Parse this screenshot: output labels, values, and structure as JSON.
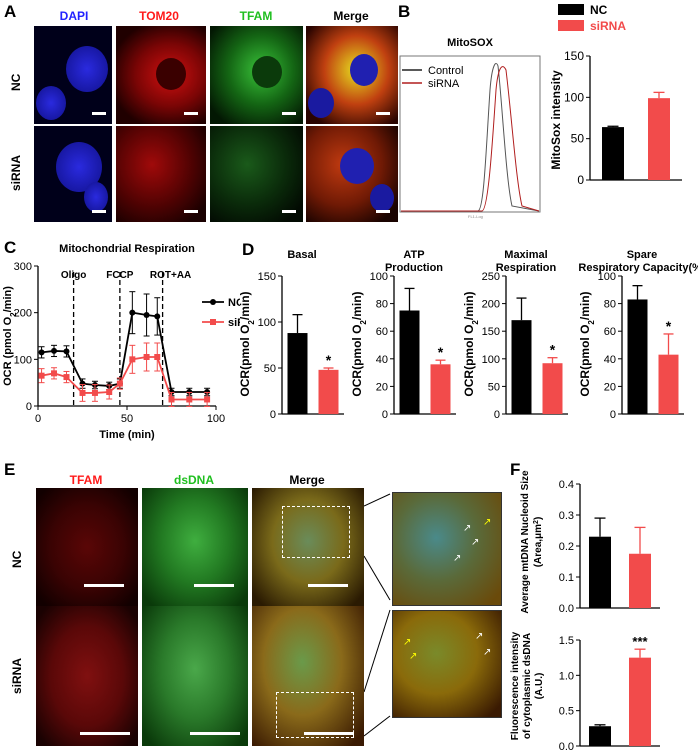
{
  "panels": {
    "A": "A",
    "B": "B",
    "C": "C",
    "D": "D",
    "E": "E",
    "F": "F"
  },
  "panelA": {
    "columns": [
      {
        "label": "DAPI",
        "color": "#2222ff"
      },
      {
        "label": "TOM20",
        "color": "#ff1a1a"
      },
      {
        "label": "TFAM",
        "color": "#1fbf1f"
      },
      {
        "label": "Merge",
        "color": "#000000"
      }
    ],
    "rows": [
      "NC",
      "siRNA"
    ]
  },
  "panelB": {
    "histogram": {
      "title": "MitoSOX",
      "legend": [
        {
          "name": "Control",
          "color": "#222222"
        },
        {
          "name": "siRNA",
          "color": "#b01e1e"
        }
      ],
      "axis_text": "FL1-Log"
    }
  },
  "panelE": {
    "columns": [
      {
        "label": "TFAM",
        "color": "#ff1a1a"
      },
      {
        "label": "dsDNA",
        "color": "#1fbf1f"
      },
      {
        "label": "Merge",
        "color": "#000000"
      }
    ],
    "rows": [
      "NC",
      "siRNA"
    ]
  },
  "colors": {
    "nc": "#000000",
    "sirna": "#f24b4b"
  },
  "chart_data": [
    {
      "id": "B-bar",
      "type": "bar",
      "categories": [
        "NC",
        "siRNA"
      ],
      "values": [
        64,
        99
      ],
      "errors": [
        1,
        7
      ],
      "ylabel": "MitoSox  intensity",
      "ylim": [
        0,
        150
      ],
      "yticks": [
        0,
        50,
        100,
        150
      ],
      "legend": [
        {
          "name": "NC",
          "color": "#000000"
        },
        {
          "name": "siRNA",
          "color": "#f24b4b"
        }
      ],
      "legend_position": "top"
    },
    {
      "id": "C",
      "type": "line",
      "title": "Mitochondrial Respiration",
      "xlabel": "Time (min)",
      "ylabel": "OCR (pmol O",
      "ylabel_sub": "2",
      "ylabel_tail": "/min)",
      "xlim": [
        0,
        100
      ],
      "xticks": [
        0,
        50,
        100
      ],
      "ylim": [
        0,
        300
      ],
      "yticks": [
        0,
        100,
        200,
        300
      ],
      "injections": [
        {
          "label": "Oligo",
          "x": 20
        },
        {
          "label": "FCCP",
          "x": 46
        },
        {
          "label": "ROT+AA",
          "x": 70
        }
      ],
      "series": [
        {
          "name": "NC",
          "color": "#000000",
          "marker": "circle",
          "x": [
            2,
            9,
            16,
            25,
            32,
            40,
            46,
            53,
            61,
            67,
            75,
            85,
            95
          ],
          "y": [
            115,
            118,
            117,
            48,
            45,
            43,
            48,
            200,
            195,
            192,
            30,
            30,
            30
          ],
          "err": [
            12,
            12,
            12,
            10,
            8,
            8,
            10,
            45,
            45,
            40,
            8,
            8,
            8
          ]
        },
        {
          "name": "siRNA",
          "color": "#f24b4b",
          "marker": "square",
          "x": [
            2,
            9,
            16,
            25,
            32,
            40,
            46,
            53,
            61,
            67,
            75,
            85,
            95
          ],
          "y": [
            65,
            70,
            62,
            28,
            28,
            30,
            48,
            100,
            105,
            105,
            14,
            14,
            14
          ],
          "err": [
            15,
            12,
            12,
            18,
            18,
            15,
            12,
            30,
            30,
            30,
            15,
            15,
            15
          ]
        }
      ],
      "legend_position": "right"
    },
    {
      "id": "D1",
      "type": "bar",
      "title": "Basal",
      "categories": [
        "NC",
        "siRNA"
      ],
      "values": [
        88,
        48
      ],
      "errors": [
        20,
        2
      ],
      "sig": [
        "",
        "*"
      ],
      "ylabel": "OCR(pmol O",
      "ylabel_sub": "2",
      "ylabel_tail": "/min)",
      "ylim": [
        0,
        150
      ],
      "yticks": [
        0,
        50,
        100,
        150
      ]
    },
    {
      "id": "D2",
      "type": "bar",
      "title": "ATP",
      "title2": "Production",
      "categories": [
        "NC",
        "siRNA"
      ],
      "values": [
        75,
        36
      ],
      "errors": [
        16,
        3
      ],
      "sig": [
        "",
        "*"
      ],
      "ylabel": "OCR(pmol O",
      "ylabel_sub": "2",
      "ylabel_tail": "/min)",
      "ylim": [
        0,
        100
      ],
      "yticks": [
        0,
        20,
        40,
        60,
        80,
        100
      ]
    },
    {
      "id": "D3",
      "type": "bar",
      "title": "Maximal",
      "title2": "Respiration",
      "categories": [
        "NC",
        "siRNA"
      ],
      "values": [
        170,
        92
      ],
      "errors": [
        40,
        10
      ],
      "sig": [
        "",
        "*"
      ],
      "ylabel": "OCR(pmol O",
      "ylabel_sub": "2",
      "ylabel_tail": "/min)",
      "ylim": [
        0,
        250
      ],
      "yticks": [
        0,
        50,
        100,
        150,
        200,
        250
      ]
    },
    {
      "id": "D4",
      "type": "bar",
      "title": "Spare",
      "title2": "Respiratory Capacity(%)",
      "categories": [
        "NC",
        "siRNA"
      ],
      "values": [
        83,
        43
      ],
      "errors": [
        10,
        15
      ],
      "sig": [
        "",
        "*"
      ],
      "ylabel": "OCR(pmol O",
      "ylabel_sub": "2",
      "ylabel_tail": "/min)",
      "ylim": [
        0,
        100
      ],
      "yticks": [
        0,
        20,
        40,
        60,
        80,
        100
      ]
    },
    {
      "id": "F1",
      "type": "bar",
      "categories": [
        "NC",
        "siRNA"
      ],
      "values": [
        0.23,
        0.175
      ],
      "errors": [
        0.06,
        0.085
      ],
      "sig": [
        "",
        ""
      ],
      "ylabel": "Average mtDNA Nucleoid Size",
      "ylabel2": "(Area,μm",
      "ylabel2_sup": "2",
      "ylabel2_tail": ")",
      "ylim": [
        0,
        0.4
      ],
      "yticks": [
        0.0,
        0.1,
        0.2,
        0.3,
        0.4
      ],
      "tickdec": 1
    },
    {
      "id": "F2",
      "type": "bar",
      "categories": [
        "NC",
        "siRNA"
      ],
      "values": [
        0.28,
        1.25
      ],
      "errors": [
        0.02,
        0.12
      ],
      "sig": [
        "",
        "***"
      ],
      "ylabel": "Fluorescence intensity",
      "ylabel2": "of cytoplasmic dsDNA",
      "ylabel3": "(A.U.)",
      "ylim": [
        0,
        1.5
      ],
      "yticks": [
        0.0,
        0.5,
        1.0,
        1.5
      ],
      "tickdec": 1
    }
  ]
}
